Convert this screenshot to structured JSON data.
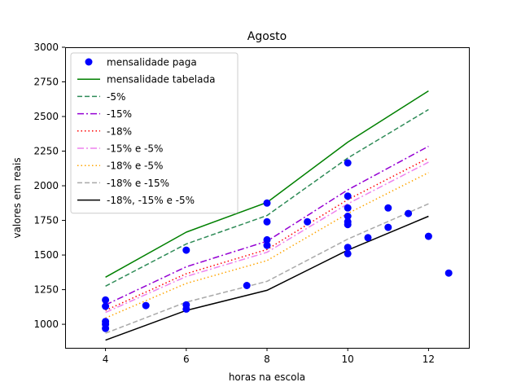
{
  "chart_data": {
    "type": "line",
    "title": "Agosto",
    "xlabel": "horas na escola",
    "ylabel": "valores em reais",
    "xlim": [
      3,
      13
    ],
    "ylim": [
      830,
      3000
    ],
    "xticks": [
      4,
      6,
      8,
      10,
      12
    ],
    "yticks": [
      1000,
      1250,
      1500,
      1750,
      2000,
      2250,
      2500,
      2750,
      3000
    ],
    "grid": false,
    "legend_position": "top-left",
    "scatter": {
      "name": "mensalidade paga",
      "color": "#0000ff",
      "points": [
        [
          4,
          1175
        ],
        [
          4,
          1130
        ],
        [
          4,
          1020
        ],
        [
          4,
          1000
        ],
        [
          4,
          970
        ],
        [
          5,
          1135
        ],
        [
          6,
          1535
        ],
        [
          6,
          1140
        ],
        [
          6,
          1110
        ],
        [
          7.5,
          1280
        ],
        [
          8,
          1875
        ],
        [
          8,
          1740
        ],
        [
          8,
          1610
        ],
        [
          8,
          1570
        ],
        [
          9,
          1740
        ],
        [
          10,
          2165
        ],
        [
          10,
          1925
        ],
        [
          10,
          1840
        ],
        [
          10,
          1780
        ],
        [
          10,
          1740
        ],
        [
          10,
          1720
        ],
        [
          10,
          1555
        ],
        [
          10,
          1510
        ],
        [
          10.5,
          1625
        ],
        [
          11,
          1840
        ],
        [
          11,
          1700
        ],
        [
          11.5,
          1800
        ],
        [
          12,
          1635
        ],
        [
          12.5,
          1370
        ]
      ]
    },
    "x": [
      4,
      6,
      8,
      10,
      12
    ],
    "series": [
      {
        "name": "mensalidade tabelada",
        "color": "#008000",
        "dash": "",
        "values": [
          1340,
          1665,
          1880,
          2315,
          2685
        ]
      },
      {
        "name": "-5%",
        "color": "#2e8b57",
        "dash": "6,3",
        "values": [
          1275,
          1580,
          1785,
          2200,
          2550
        ]
      },
      {
        "name": "-15%",
        "color": "#9400d3",
        "dash": "8,3,2,3",
        "values": [
          1140,
          1415,
          1600,
          1970,
          2285
        ]
      },
      {
        "name": "-18%",
        "color": "#ff0000",
        "dash": "1.5,3",
        "values": [
          1100,
          1365,
          1540,
          1900,
          2200
        ]
      },
      {
        "name": "-15% e -5%",
        "color": "#ee82ee",
        "dash": "8,3,2,3",
        "values": [
          1085,
          1345,
          1520,
          1870,
          2170
        ]
      },
      {
        "name": "-18% e -5%",
        "color": "#ffa500",
        "dash": "1.5,3",
        "values": [
          1045,
          1295,
          1460,
          1800,
          2095
        ]
      },
      {
        "name": "-18% e -15%",
        "color": "#a9a9a9",
        "dash": "6,3",
        "values": [
          935,
          1160,
          1310,
          1615,
          1870
        ]
      },
      {
        "name": "-18%, -15% e -5%",
        "color": "#000000",
        "dash": "",
        "values": [
          885,
          1100,
          1245,
          1535,
          1780
        ]
      }
    ]
  }
}
